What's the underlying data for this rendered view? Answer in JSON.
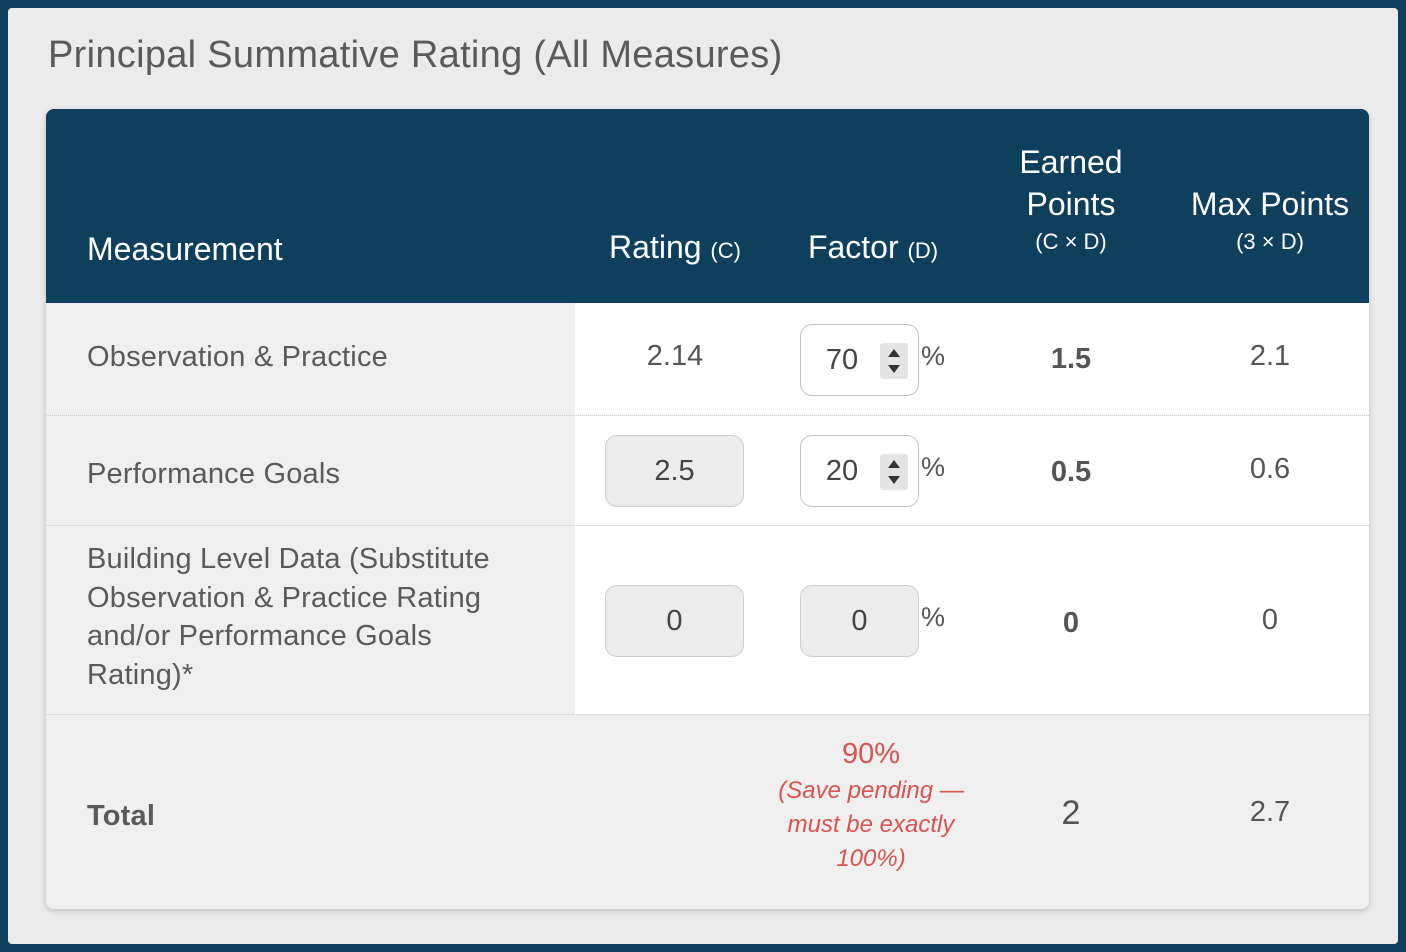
{
  "title": "Principal Summative Rating (All Measures)",
  "header": {
    "measurement": "Measurement",
    "rating": "Rating",
    "rating_sub": "(C)",
    "factor": "Factor",
    "factor_sub": "(D)",
    "earned_line1": "Earned",
    "earned_line2": "Points",
    "earned_sub": "(C × D)",
    "max_line1": "Max Points",
    "max_sub": "(3 × D)"
  },
  "rows": [
    {
      "label_lines": [
        "Observation & Practice"
      ],
      "rating": "2.14",
      "factor": "70",
      "earned": "1.5",
      "max": "2.1"
    },
    {
      "label_lines": [
        "Performance Goals"
      ],
      "rating": "2.5",
      "factor": "20",
      "earned": "0.5",
      "max": "0.6"
    },
    {
      "label_lines": [
        "Building Level Data (Substitute",
        "Observation & Practice Rating",
        "and/or Performance Goals",
        "Rating)*"
      ],
      "rating": "0",
      "factor": "0",
      "earned": "0",
      "max": "0"
    }
  ],
  "percent_sign": "%",
  "total": {
    "label": "Total",
    "factor_total": "90%",
    "warning_lines": [
      "(Save pending —",
      "must be exactly",
      "100%)"
    ],
    "earned": "2",
    "max": "2.7"
  },
  "colors": {
    "header_bg": "#0e3f5c",
    "warning": "#d9534f"
  }
}
